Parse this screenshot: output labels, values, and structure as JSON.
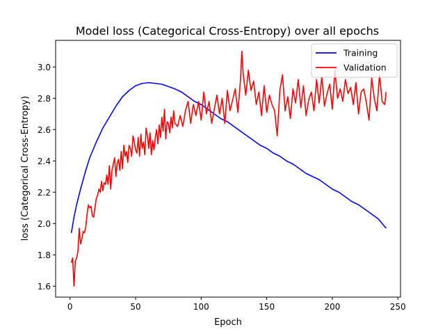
{
  "chart_data": {
    "type": "line",
    "title": "Model loss (Categorical Cross-Entropy) over all epochs",
    "xlabel": "Epoch",
    "ylabel": "loss (Categorical Cross-Entropy)",
    "xlim": [
      -11,
      252
    ],
    "ylim": [
      1.53,
      3.17
    ],
    "xticks": [
      0,
      50,
      100,
      150,
      200,
      250
    ],
    "yticks": [
      1.6,
      1.8,
      2.0,
      2.2,
      2.4,
      2.6,
      2.8,
      3.0
    ],
    "ytick_labels": [
      "1.6",
      "1.8",
      "2.0",
      "2.2",
      "2.4",
      "2.6",
      "2.8",
      "3.0"
    ],
    "grid": false,
    "legend_position": "top-right",
    "series": [
      {
        "name": "Training",
        "color": "#0000ff",
        "x": [
          1,
          3,
          5,
          8,
          10,
          12,
          15,
          18,
          20,
          25,
          30,
          35,
          40,
          45,
          50,
          55,
          60,
          65,
          70,
          75,
          80,
          85,
          90,
          95,
          100,
          105,
          110,
          115,
          120,
          125,
          130,
          135,
          140,
          145,
          150,
          155,
          160,
          165,
          170,
          175,
          180,
          185,
          190,
          195,
          200,
          205,
          210,
          215,
          220,
          225,
          230,
          235,
          238,
          241
        ],
        "values": [
          1.94,
          2.04,
          2.12,
          2.22,
          2.28,
          2.34,
          2.42,
          2.48,
          2.52,
          2.61,
          2.68,
          2.75,
          2.81,
          2.85,
          2.88,
          2.895,
          2.9,
          2.895,
          2.89,
          2.875,
          2.86,
          2.84,
          2.81,
          2.78,
          2.76,
          2.73,
          2.7,
          2.67,
          2.65,
          2.62,
          2.59,
          2.56,
          2.53,
          2.5,
          2.48,
          2.45,
          2.43,
          2.4,
          2.38,
          2.35,
          2.32,
          2.3,
          2.28,
          2.25,
          2.22,
          2.2,
          2.17,
          2.14,
          2.12,
          2.09,
          2.06,
          2.03,
          2.0,
          1.97
        ]
      },
      {
        "name": "Validation",
        "color": "#ff0000",
        "x": [
          1,
          2,
          3,
          4,
          5,
          6,
          7,
          8,
          9,
          10,
          11,
          12,
          13,
          14,
          15,
          16,
          17,
          18,
          19,
          20,
          21,
          22,
          23,
          24,
          25,
          26,
          27,
          28,
          29,
          30,
          31,
          32,
          33,
          34,
          35,
          36,
          37,
          38,
          39,
          40,
          41,
          42,
          43,
          44,
          45,
          46,
          47,
          48,
          49,
          50,
          51,
          52,
          53,
          54,
          55,
          56,
          57,
          58,
          59,
          60,
          61,
          62,
          63,
          64,
          65,
          66,
          67,
          68,
          69,
          70,
          71,
          72,
          73,
          74,
          75,
          76,
          77,
          78,
          79,
          80,
          82,
          84,
          86,
          88,
          90,
          92,
          94,
          96,
          98,
          100,
          102,
          104,
          106,
          108,
          110,
          112,
          114,
          116,
          118,
          120,
          122,
          124,
          126,
          128,
          130,
          131,
          132,
          134,
          136,
          138,
          140,
          142,
          144,
          146,
          148,
          150,
          152,
          154,
          156,
          158,
          160,
          162,
          164,
          166,
          168,
          170,
          172,
          174,
          176,
          178,
          180,
          182,
          184,
          186,
          188,
          190,
          192,
          194,
          196,
          198,
          200,
          202,
          204,
          206,
          208,
          210,
          212,
          214,
          216,
          218,
          220,
          222,
          224,
          226,
          228,
          230,
          232,
          234,
          236,
          238,
          240,
          241
        ],
        "values": [
          1.75,
          1.78,
          1.6,
          1.76,
          1.78,
          1.82,
          1.97,
          1.87,
          1.9,
          1.95,
          1.94,
          1.98,
          2.06,
          2.12,
          2.1,
          2.11,
          2.05,
          2.04,
          2.1,
          2.16,
          2.18,
          2.22,
          2.2,
          2.27,
          2.21,
          2.26,
          2.25,
          2.31,
          2.25,
          2.37,
          2.22,
          2.34,
          2.38,
          2.42,
          2.3,
          2.39,
          2.41,
          2.34,
          2.46,
          2.35,
          2.5,
          2.43,
          2.46,
          2.39,
          2.5,
          2.48,
          2.43,
          2.56,
          2.52,
          2.47,
          2.45,
          2.55,
          2.43,
          2.57,
          2.48,
          2.52,
          2.44,
          2.61,
          2.56,
          2.48,
          2.58,
          2.44,
          2.53,
          2.47,
          2.55,
          2.6,
          2.51,
          2.63,
          2.55,
          2.68,
          2.59,
          2.73,
          2.54,
          2.65,
          2.64,
          2.58,
          2.68,
          2.61,
          2.72,
          2.64,
          2.62,
          2.69,
          2.62,
          2.72,
          2.78,
          2.64,
          2.76,
          2.69,
          2.78,
          2.66,
          2.84,
          2.7,
          2.78,
          2.64,
          2.73,
          2.82,
          2.7,
          2.8,
          2.64,
          2.85,
          2.72,
          2.79,
          2.86,
          2.71,
          2.92,
          3.1,
          2.96,
          2.82,
          2.98,
          2.85,
          2.91,
          2.76,
          2.84,
          2.69,
          2.88,
          2.71,
          2.82,
          2.76,
          2.72,
          2.56,
          2.85,
          2.95,
          2.72,
          2.81,
          2.67,
          2.86,
          2.77,
          2.92,
          2.74,
          2.88,
          2.69,
          2.79,
          2.84,
          2.72,
          2.92,
          2.77,
          2.94,
          2.75,
          2.83,
          2.89,
          2.73,
          2.98,
          2.8,
          2.86,
          2.78,
          2.92,
          2.83,
          2.87,
          2.76,
          2.9,
          2.7,
          2.84,
          2.86,
          2.77,
          2.66,
          2.93,
          2.8,
          2.72,
          2.95,
          2.78,
          2.76,
          2.84
        ]
      }
    ]
  }
}
